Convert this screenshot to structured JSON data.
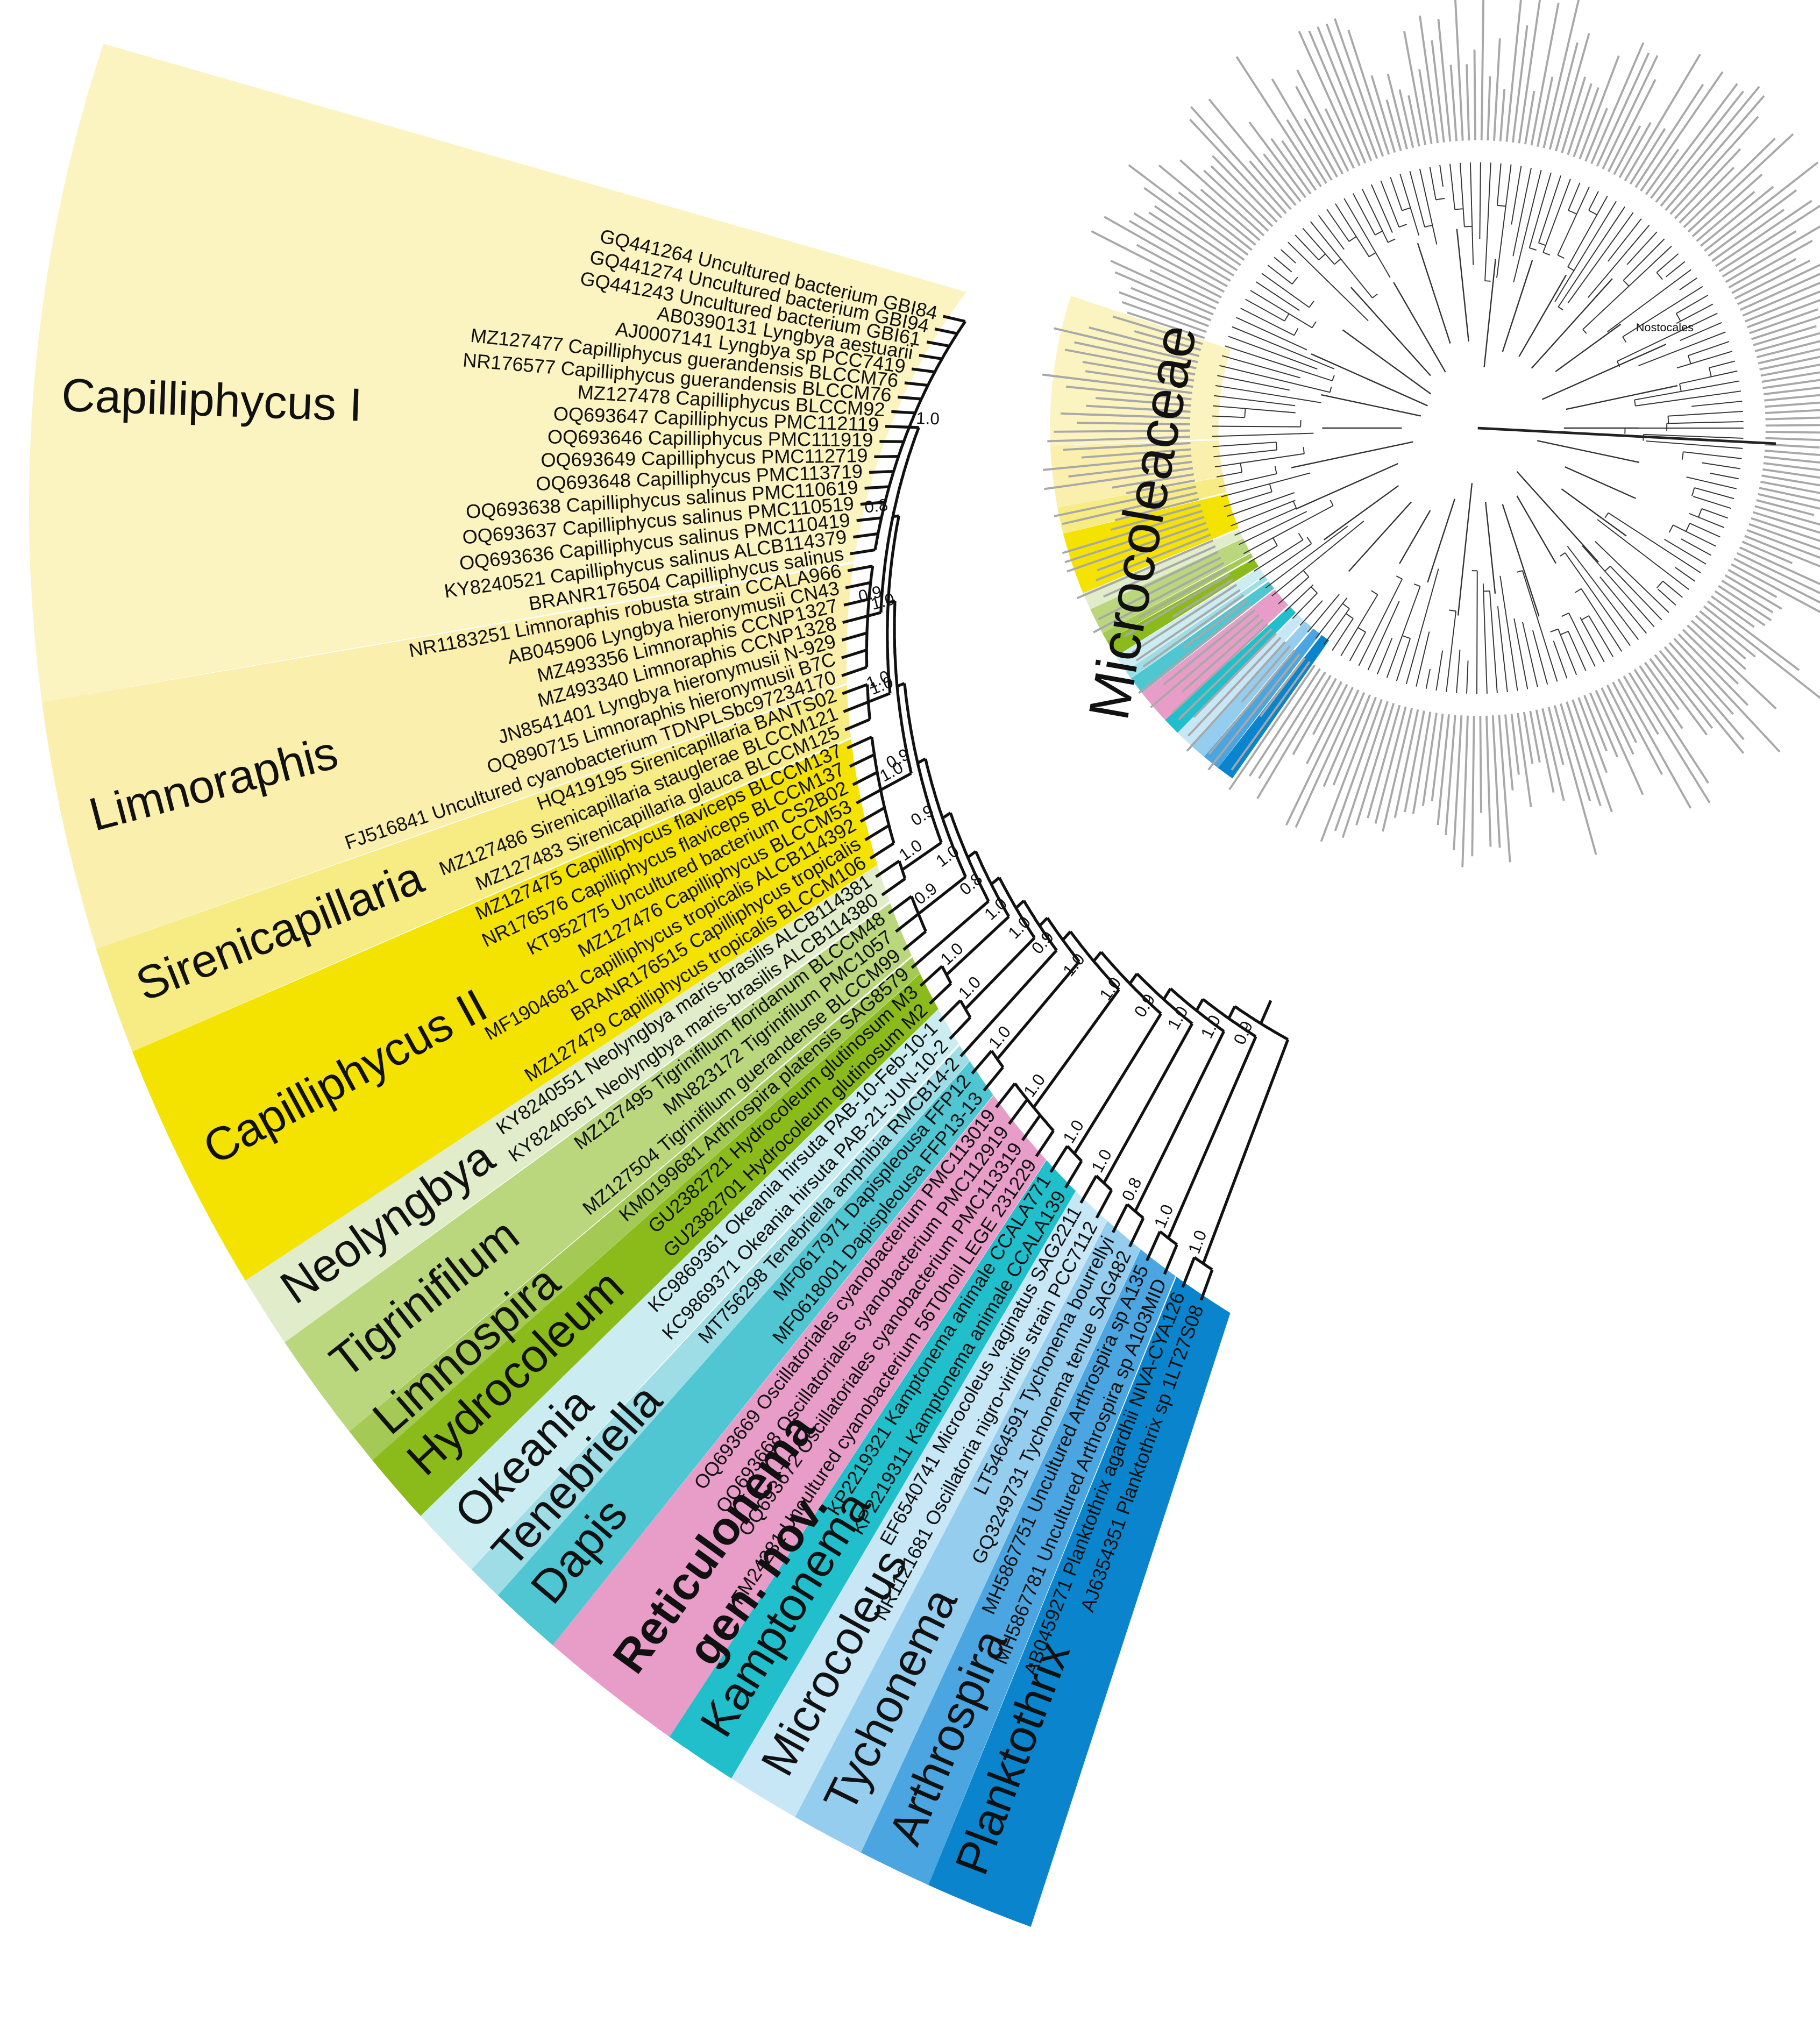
{
  "clades": [
    {
      "name": "Capilliphycus I",
      "color": "#fbf3c0",
      "support": "1.0",
      "leaves": [
        "GQ441264 Uncultured bacterium GBI84",
        "GQ441274 Uncultured bacterium GBI94",
        "GQ441243 Uncultured bacterium GBI61",
        "AB0390131 Lyngbya aestuarii",
        "AJ0007141 Lyngbya sp PCC7419",
        "MZ127477 Capilliphycus guerandensis BLCCM76",
        "NR176577 Capilliphycus guerandensis BLCCM76",
        "MZ127478 Capilliphycus BLCCM92",
        "OQ693647 Capilliphycus PMC112119",
        "OQ693646 Capilliphycus PMC111919",
        "OQ693649 Capilliphycus PMC112719",
        "OQ693648 Capilliphycus PMC113719",
        "OQ693638 Capilliphycus salinus PMC110619",
        "OQ693637 Capilliphycus salinus PMC110519",
        "OQ693636 Capilliphycus salinus PMC110419",
        "KY8240521 Capilliphycus salinus ALCB114379",
        "BRANR176504 Capilliphycus salinus"
      ]
    },
    {
      "name": "Limnoraphis",
      "color": "#faefad",
      "support": "1.0",
      "leaves": [
        "NR1183251 Limnoraphis robusta strain CCALA966",
        "AB045906 Lyngbya hieronymusii CN43",
        "MZ493356 Limnoraphis CCNP1327",
        "MZ493340 Limnoraphis CCNP1328",
        "JN8541401 Lyngbya hieronymusii N-929",
        "OQ890715 Limnoraphis hieronymusii B7C",
        "FJ516841 Uncultured cyanobacterium TDNPLSbc97234170"
      ]
    },
    {
      "name": "Sirenicapillaria",
      "color": "#f7ec83",
      "support": "1.0",
      "leaves": [
        "HQ419195 Sirenicapillaria BANTS02",
        "MZ127486 Sirenicapillaria stauglerae BLCCM121",
        "MZ127483 Sirenicapillaria glauca BLCCM125"
      ]
    },
    {
      "name": "Capilliphycus II",
      "color": "#f4e200",
      "support": "1.0",
      "leaves": [
        "MZ127475 Capilliphycus flaviceps BLCCM137",
        "NR176576 Capilliphycus flaviceps BLCCM137",
        "KT952775 Uncultured bacterium CS2B02",
        "MZ127476 Capilliphycus BLCCM53",
        "MF1904681 Capilliphycus tropicalis ALCB114392",
        "BRANR176515 Capilliphycus tropicalis",
        "MZ127479 Capilliphycus tropicalis BLCCM106"
      ]
    },
    {
      "name": "Neolyngbya",
      "color": "#e1ecca",
      "support": "1.0",
      "leaves": [
        "KY8240551 Neolyngbya maris-brasilis ALCB114381",
        "KY8240561 Neolyngbya maris-brasilis ALCB114380"
      ]
    },
    {
      "name": "Tigrinifilum",
      "color": "#bad77e",
      "support": "0.9",
      "leaves": [
        "MZ127495 Tigrinifilum floridanum BLCCM48",
        "MN823172 Tigrinifilum PMC1057",
        "MZ127504 Tigrinifilum guerandense BLCCM99"
      ]
    },
    {
      "name": "Limnospira",
      "color": "#a4c955",
      "leaves": [
        "KM0199681 Arthrospira platensis SAG8579"
      ]
    },
    {
      "name": "Hydrocoleum",
      "color": "#8bbb1b",
      "support": "1.0",
      "leaves": [
        "GU2382721 Hydrocoleum glutinosum M3",
        "GU2382701 Hydrocoleum glutinosum M2"
      ]
    },
    {
      "name": "Okeania",
      "color": "#cbedf2",
      "support": "1.0",
      "leaves": [
        "KC9869361 Okeania hirsuta PAB-10-Feb-10-1",
        "KC9869371 Okeania hirsuta PAB-21-JUN-10-2"
      ]
    },
    {
      "name": "Tenebriella",
      "color": "#9fdde6",
      "leaves": [
        "MT756298 Tenebriella amphibia RMCB14-2"
      ]
    },
    {
      "name": "Dapis",
      "color": "#4fc6d2",
      "support": "1.0",
      "leaves": [
        "MF0617971 Dapispleousa FFP12",
        "MF0618001 Dapispleousa FFP13-13"
      ]
    },
    {
      "name": "Reticulonema",
      "note": "gen. nov.",
      "color": "#e89cc8",
      "support": "1.0",
      "leaves": [
        "OQ693669 Oscillatoriales cyanobacterium PMC113019",
        "OQ693668 Oscillatoriales cyanobacterium PMC112919",
        "OQ693672 Oscillatoriales cyanobacterium PMC113319",
        "FM24281 Uncultured cyanobacterium 56T0hoil LEGE 231229"
      ]
    },
    {
      "name": "Kamptonema",
      "color": "#21bfcb",
      "support": "1.0",
      "leaves": [
        "KP2219321 Kamptonema animale CCALA771",
        "KP2219311 Kamptonema animale CCALA139"
      ]
    },
    {
      "name": "Microcoleus",
      "color": "#c8e7f6",
      "support": "1.0",
      "leaves": [
        "EF6540741 Microcoleus vaginatus SAG2211",
        "NR1121681 Oscillatoria nigro-viridis strain PCC7112"
      ]
    },
    {
      "name": "Tychonema",
      "color": "#95cdef",
      "support": "0.8",
      "leaves": [
        "LT5464591 Tychonema bourrellyi",
        "GQ3249731 Tychonema tenue SAG482"
      ]
    },
    {
      "name": "Arthrospira",
      "color": "#4aa5e0",
      "support": "1.0",
      "leaves": [
        "MH5867751 Uncultured Arthrospira sp A135",
        "MH5867781 Uncultured Arthrospira sp A103MID"
      ]
    },
    {
      "name": "Planktothrix",
      "color": "#0a84cc",
      "support": "1.0",
      "leaves": [
        "AB0459271 Planktothrix agardhii NIVA-CYA126",
        "AJ6354351 Planktothrix sp 1LT27S08"
      ]
    }
  ],
  "backbone_support": [
    "0.8",
    "0.9",
    "1.0",
    "0.9",
    "0.9",
    "1.0",
    "0.8",
    "1.0",
    "1.0",
    "0.9",
    "1.0",
    "1.0",
    "0.9",
    "1.0",
    "1.0",
    "0.9"
  ],
  "inset": {
    "group_label": "Microcoleaceae",
    "outgroup_label": "Nostocales"
  }
}
